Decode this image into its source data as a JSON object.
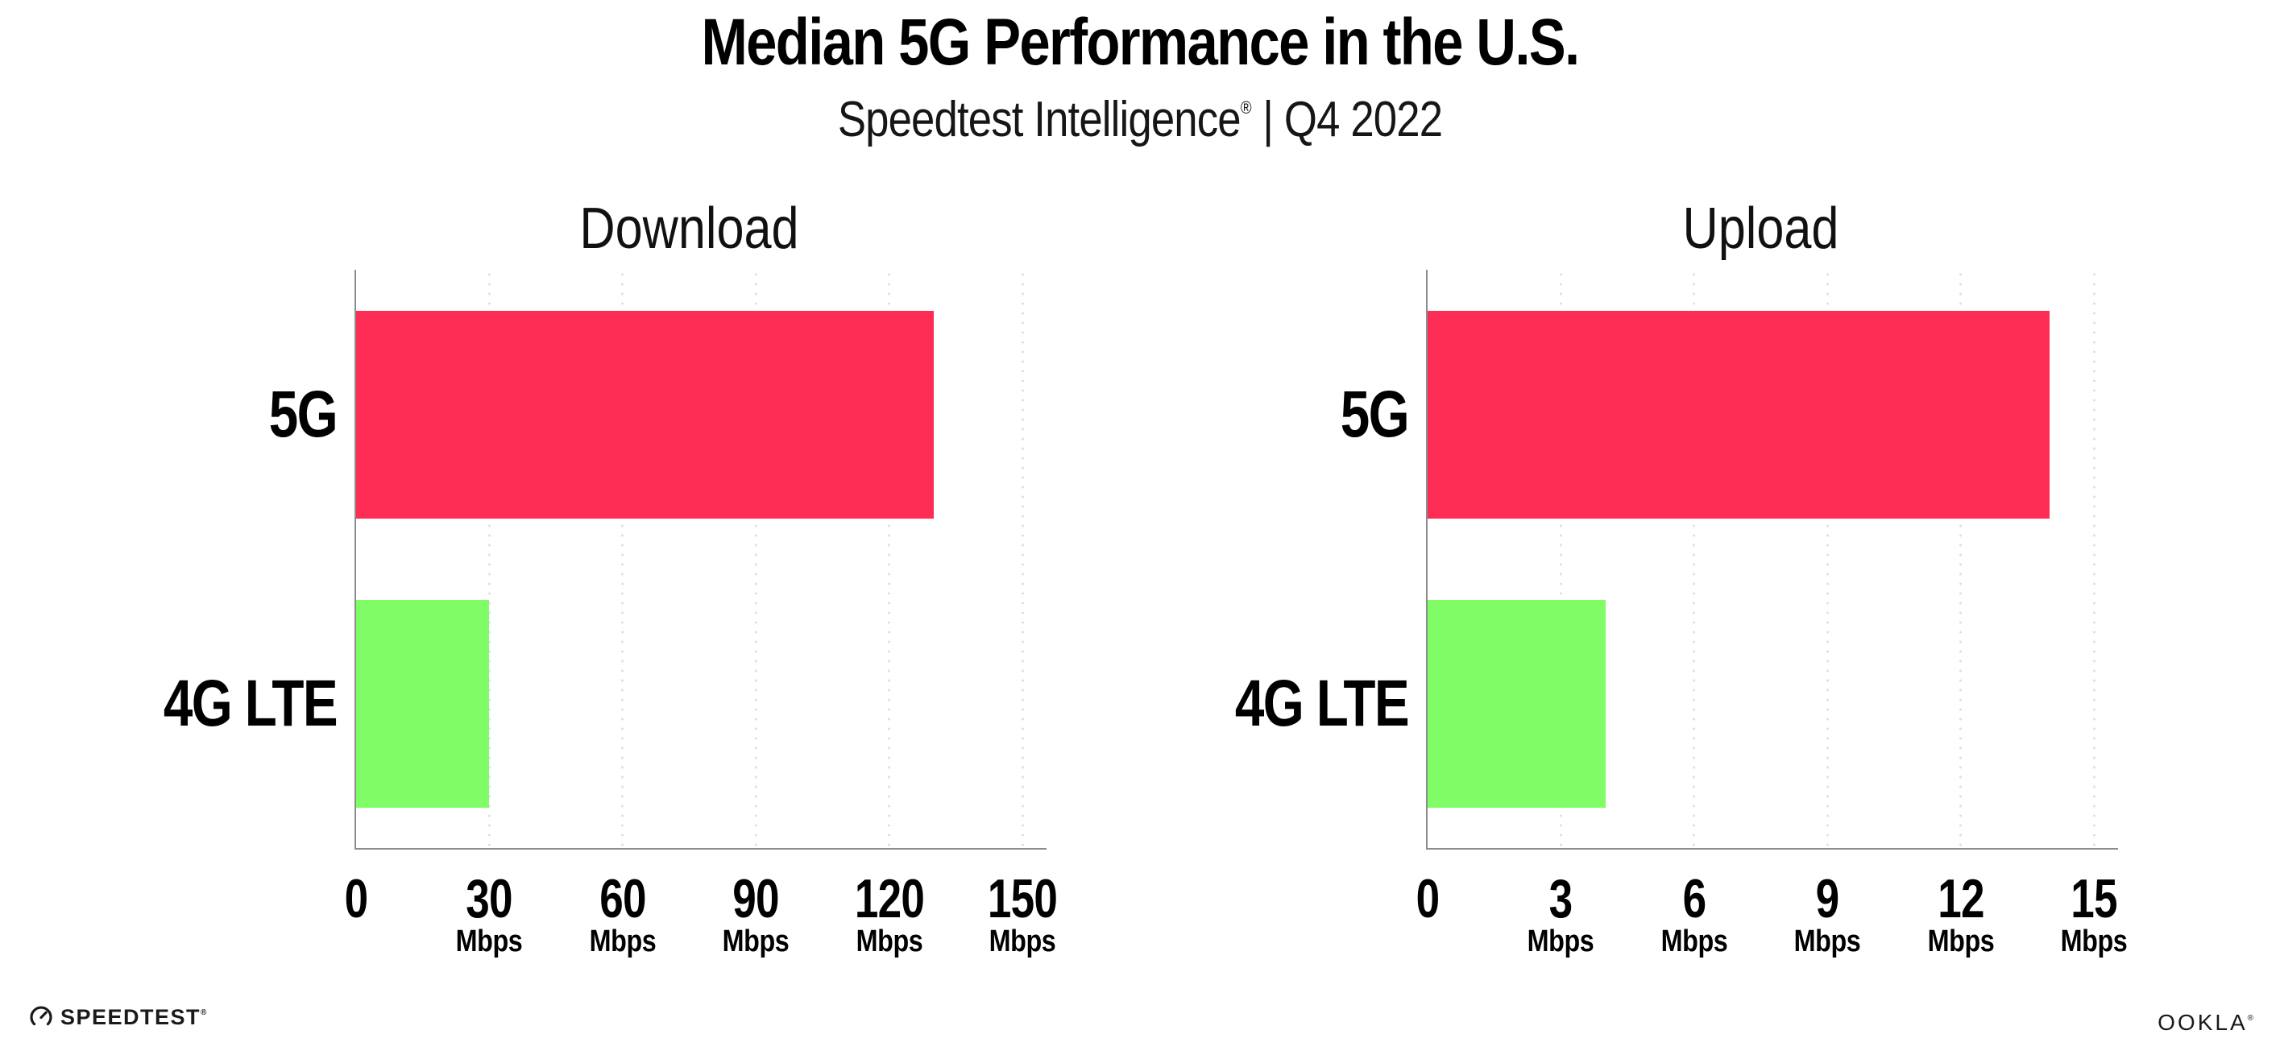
{
  "header": {
    "title": "Median 5G Performance in the U.S.",
    "subtitle_brand": "Speedtest Intelligence",
    "subtitle_mark": "®",
    "subtitle_period": " | Q4 2022"
  },
  "chart_data": [
    {
      "type": "bar",
      "orientation": "horizontal",
      "title": "Download",
      "categories": [
        "5G",
        "4G LTE"
      ],
      "values": [
        130,
        30
      ],
      "unit": "Mbps",
      "xlim": [
        0,
        150
      ],
      "xticks": [
        0,
        30,
        60,
        90,
        120,
        150
      ],
      "tick_unit_label": "Mbps",
      "bar_colors": [
        "#fd2d56",
        "#80fd66"
      ],
      "grid": "dotted-vertical-gridlines",
      "legend": "none"
    },
    {
      "type": "bar",
      "orientation": "horizontal",
      "title": "Upload",
      "categories": [
        "5G",
        "4G LTE"
      ],
      "values": [
        14,
        4
      ],
      "unit": "Mbps",
      "xlim": [
        0,
        15
      ],
      "xticks": [
        0,
        3,
        6,
        9,
        12,
        15
      ],
      "tick_unit_label": "Mbps",
      "bar_colors": [
        "#fd2d56",
        "#80fd66"
      ],
      "grid": "dotted-vertical-gridlines",
      "legend": "none"
    }
  ],
  "colors": {
    "bar_5g": "#fd2d56",
    "bar_4g_lte": "#80fd66",
    "axis": "#8c8c8c",
    "gridline": "#dcdce6",
    "text": "#000000",
    "background": "#ffffff"
  },
  "footer": {
    "speedtest_logo_text": "SPEEDTEST",
    "speedtest_logo_mark": "®",
    "ookla_logo_text": "OOKLA",
    "ookla_logo_mark": "®"
  }
}
